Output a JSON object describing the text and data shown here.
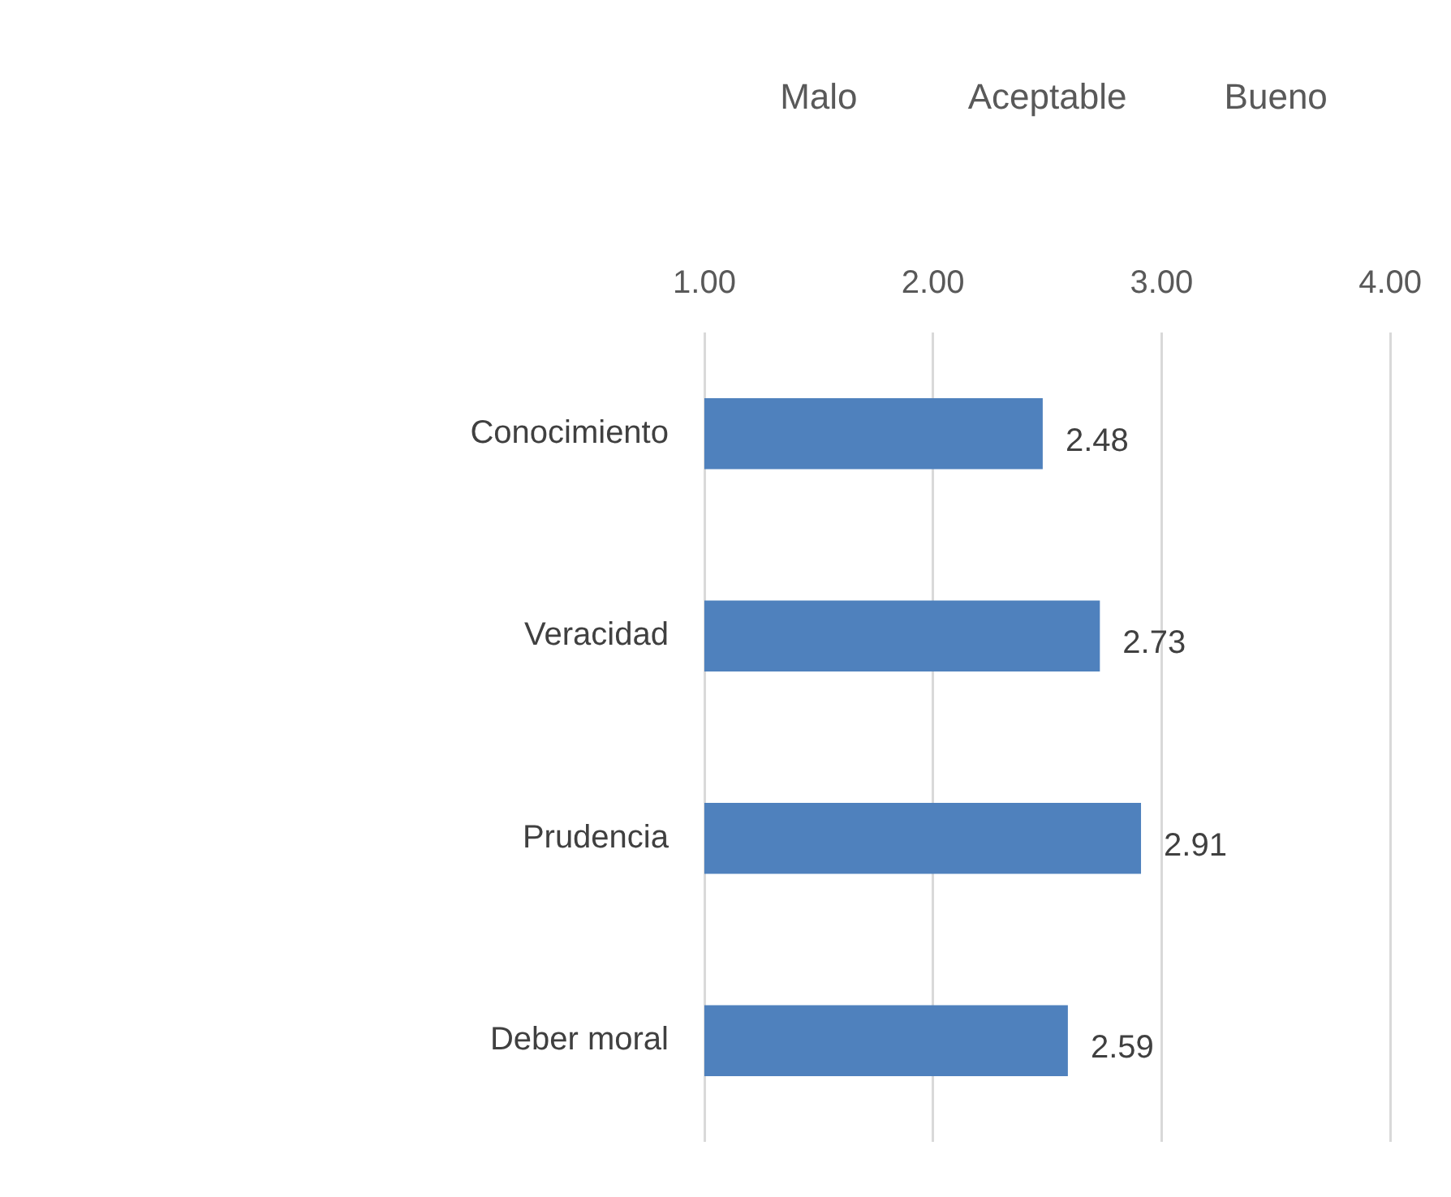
{
  "chart_data": {
    "type": "bar",
    "orientation": "horizontal",
    "categories": [
      "Conocimiento",
      "Veracidad",
      "Prudencia",
      "Deber moral"
    ],
    "values": [
      2.48,
      2.73,
      2.91,
      2.59
    ],
    "color": "#4f81bd",
    "xlim": [
      1,
      4
    ],
    "xticks": [
      {
        "value": 1,
        "label": "1.00"
      },
      {
        "value": 2,
        "label": "2.00"
      },
      {
        "value": 3,
        "label": "3.00"
      },
      {
        "value": 4,
        "label": "4.00"
      }
    ],
    "annotations": [
      "Malo",
      "Aceptable",
      "Bueno"
    ],
    "grid": "x",
    "data_labels": true,
    "legend": false
  }
}
